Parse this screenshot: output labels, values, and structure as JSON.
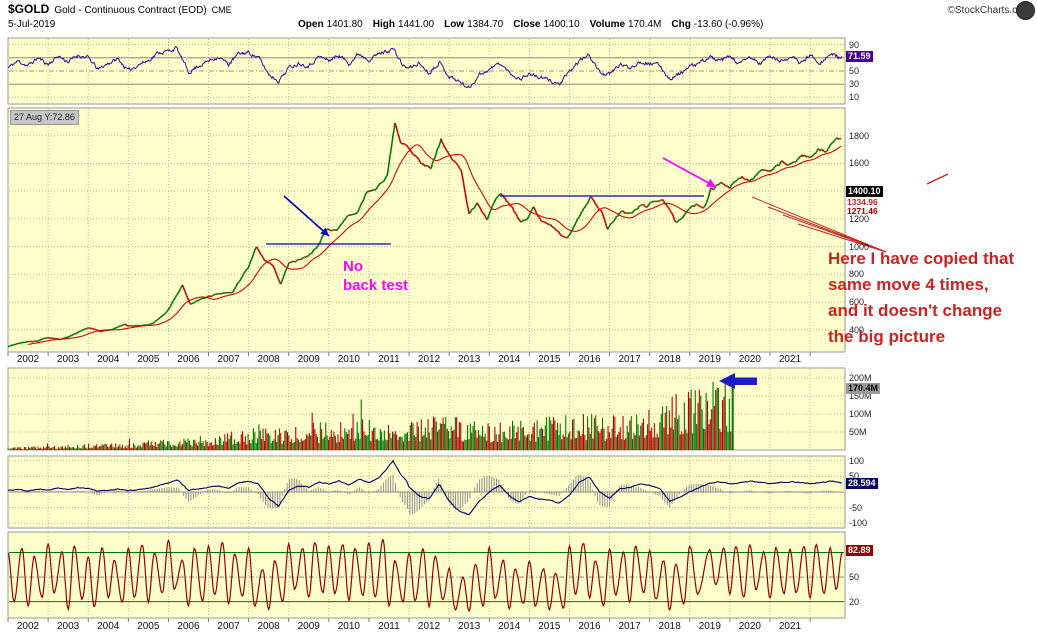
{
  "header": {
    "symbol": "$GOLD",
    "title": "Gold - Continuous Contract (EOD)",
    "exchange": "CME",
    "copyright": "©StockCharts.com",
    "date": "5-Jul-2019",
    "quote": [
      {
        "label": "Open",
        "value": "1401.80"
      },
      {
        "label": "High",
        "value": "1441.00"
      },
      {
        "label": "Low",
        "value": "1384.70"
      },
      {
        "label": "Close",
        "value": "1400.10"
      },
      {
        "label": "Volume",
        "value": "170.4M"
      },
      {
        "label": "Chg",
        "value": "-13.60 (-0.96%)"
      }
    ]
  },
  "tooltip": "27 Aug Y:72.86",
  "badges": {
    "rsi": "71.59",
    "close": "1400.10",
    "ma1": "1334.96",
    "ma2": "1271.46",
    "volume": "170.4M",
    "macd": "28.594",
    "stoch": "82.89"
  },
  "axes": {
    "years": [
      "2002",
      "2003",
      "2004",
      "2005",
      "2006",
      "2007",
      "2008",
      "2009",
      "2010",
      "2011",
      "2012",
      "2013",
      "2014",
      "2015",
      "2016",
      "2017",
      "2018",
      "2019",
      "2020",
      "2021"
    ],
    "rsi": [
      {
        "t": "90",
        "v": 90
      },
      {
        "t": "70",
        "v": 70
      },
      {
        "t": "50",
        "v": 50
      },
      {
        "t": "30",
        "v": 30
      },
      {
        "t": "10",
        "v": 10
      }
    ],
    "price": [
      {
        "t": "1800",
        "v": 1800
      },
      {
        "t": "1600",
        "v": 1600
      },
      {
        "t": "1200",
        "v": 1200
      },
      {
        "t": "1000",
        "v": 1000
      },
      {
        "t": "800",
        "v": 800
      },
      {
        "t": "600",
        "v": 600
      },
      {
        "t": "400",
        "v": 400
      }
    ],
    "volume": [
      {
        "t": "200M",
        "v": 200
      },
      {
        "t": "150M",
        "v": 150
      },
      {
        "t": "100M",
        "v": 100
      },
      {
        "t": "50M",
        "v": 50
      }
    ],
    "macd": [
      {
        "t": "100",
        "v": 100
      },
      {
        "t": "50",
        "v": 50
      },
      {
        "t": "-50",
        "v": -50
      },
      {
        "t": "-100",
        "v": -100
      }
    ],
    "stoch": [
      {
        "t": "50",
        "v": 50
      },
      {
        "t": "20",
        "v": 20
      }
    ]
  },
  "annotations": {
    "no_back_test": [
      "No",
      "back test"
    ],
    "copied_note": [
      "Here I have copied that",
      "same move 4 times,",
      "and it doesn't change",
      "the big picture"
    ]
  },
  "colors": {
    "panel_bg": "#ffffcc",
    "grid": "#b9b98f",
    "up": "#007700",
    "down": "#cc0000",
    "ma_line": "#dd0000",
    "rsi_line": "#440099",
    "macd_line": "#000066",
    "macd_hist": "#909090",
    "stoch_line": "#990000",
    "stoch_level": "#007700",
    "annotation_red": "#cc2222",
    "annotation_magenta": "#ff00ff",
    "annotation_blue": "#0000cc",
    "volume_arrow_blue": "#1c1ccc"
  },
  "chart_data": [
    {
      "id": "rsi",
      "type": "line",
      "title": "RSI oscillator (top panel)",
      "current_value": 71.59,
      "ylim": [
        0,
        100
      ],
      "levels": [
        90,
        70,
        50,
        30,
        10
      ],
      "points": [
        2002.0,
        55,
        2002.25,
        65,
        2002.5,
        58,
        2002.75,
        70,
        2003.0,
        60,
        2003.25,
        73,
        2003.5,
        64,
        2003.75,
        74,
        2004.0,
        70,
        2004.25,
        52,
        2004.5,
        62,
        2004.75,
        68,
        2005.0,
        50,
        2005.25,
        60,
        2005.5,
        66,
        2005.75,
        78,
        2006.0,
        80,
        2006.2,
        85,
        2006.5,
        48,
        2006.75,
        58,
        2007.0,
        65,
        2007.25,
        72,
        2007.5,
        60,
        2007.75,
        76,
        2008.0,
        78,
        2008.25,
        70,
        2008.5,
        45,
        2008.75,
        35,
        2009.0,
        55,
        2009.25,
        62,
        2009.5,
        58,
        2009.75,
        72,
        2010.0,
        66,
        2010.25,
        74,
        2010.5,
        62,
        2010.75,
        76,
        2011.0,
        68,
        2011.25,
        76,
        2011.6,
        84,
        2011.85,
        58,
        2012.0,
        54,
        2012.25,
        62,
        2012.5,
        47,
        2012.75,
        64,
        2013.0,
        42,
        2013.25,
        34,
        2013.5,
        24,
        2013.75,
        45,
        2014.0,
        52,
        2014.25,
        62,
        2014.5,
        48,
        2014.75,
        38,
        2015.0,
        46,
        2015.25,
        40,
        2015.5,
        36,
        2015.75,
        30,
        2016.0,
        48,
        2016.25,
        66,
        2016.5,
        74,
        2016.75,
        48,
        2017.0,
        44,
        2017.25,
        60,
        2017.5,
        55,
        2017.75,
        64,
        2018.0,
        62,
        2018.25,
        58,
        2018.5,
        38,
        2018.75,
        46,
        2019.0,
        56,
        2019.25,
        62,
        2019.5,
        71.59,
        2019.75,
        64,
        2020.0,
        72,
        2020.25,
        60,
        2020.5,
        71,
        2020.75,
        61,
        2021.0,
        73,
        2021.25,
        64,
        2021.5,
        72,
        2021.75,
        62,
        2022.0,
        74,
        2022.25,
        63,
        2022.5,
        75,
        2022.8,
        70
      ]
    },
    {
      "id": "price",
      "type": "candlestick",
      "title": "$GOLD price 2002-2019 with move copied 4 times into 2020-2021",
      "xlabel_years": [
        2002,
        2021
      ],
      "ylim": [
        240,
        2000
      ],
      "gridline_values": [
        400,
        600,
        800,
        1000,
        1200,
        1400,
        1600,
        1800
      ],
      "last_close": 1400.1,
      "points": [
        2002.0,
        280,
        2002.3,
        305,
        2002.5,
        315,
        2002.75,
        320,
        2003.0,
        345,
        2003.3,
        330,
        2003.6,
        360,
        2003.9,
        400,
        2004.0,
        415,
        2004.3,
        390,
        2004.6,
        400,
        2004.9,
        440,
        2005.0,
        425,
        2005.3,
        430,
        2005.6,
        445,
        2005.9,
        510,
        2006.0,
        545,
        2006.35,
        720,
        2006.55,
        580,
        2006.8,
        620,
        2007.0,
        640,
        2007.3,
        660,
        2007.6,
        670,
        2007.85,
        790,
        2008.0,
        850,
        2008.2,
        1000,
        2008.4,
        900,
        2008.6,
        870,
        2008.8,
        730,
        2009.0,
        880,
        2009.2,
        900,
        2009.45,
        930,
        2009.7,
        990,
        2009.95,
        1130,
        2010.2,
        1110,
        2010.45,
        1220,
        2010.7,
        1240,
        2010.95,
        1390,
        2011.2,
        1420,
        2011.45,
        1510,
        2011.65,
        1890,
        2011.8,
        1750,
        2011.95,
        1720,
        2012.1,
        1660,
        2012.35,
        1590,
        2012.55,
        1570,
        2012.8,
        1780,
        2012.95,
        1680,
        2013.1,
        1620,
        2013.3,
        1560,
        2013.5,
        1230,
        2013.7,
        1320,
        2013.95,
        1200,
        2014.15,
        1330,
        2014.3,
        1380,
        2014.55,
        1290,
        2014.8,
        1180,
        2014.95,
        1190,
        2015.1,
        1280,
        2015.3,
        1180,
        2015.55,
        1150,
        2015.8,
        1080,
        2015.95,
        1060,
        2016.1,
        1140,
        2016.3,
        1250,
        2016.55,
        1360,
        2016.8,
        1250,
        2016.95,
        1130,
        2017.1,
        1190,
        2017.3,
        1250,
        2017.55,
        1240,
        2017.8,
        1300,
        2017.95,
        1290,
        2018.1,
        1330,
        2018.3,
        1340,
        2018.5,
        1260,
        2018.65,
        1180,
        2018.85,
        1220,
        2019.0,
        1280,
        2019.2,
        1300,
        2019.35,
        1285,
        2019.45,
        1340,
        2019.52,
        1410,
        2019.8,
        1460,
        2020.0,
        1430,
        2020.3,
        1505,
        2020.5,
        1480,
        2020.8,
        1560,
        2021.0,
        1535,
        2021.3,
        1610,
        2021.5,
        1585,
        2021.8,
        1660,
        2022.0,
        1640,
        2022.2,
        1705,
        2022.4,
        1685,
        2022.6,
        1765,
        2022.8,
        1795
      ]
    },
    {
      "id": "vol",
      "type": "bars",
      "title": "Volume (millions)",
      "current_value": "170.4M",
      "ylim": [
        0,
        228
      ],
      "levels": [
        200,
        150,
        100,
        50
      ],
      "envelope": [
        2002,
        8,
        2003,
        12,
        2004,
        18,
        2005,
        20,
        2006,
        35,
        2007,
        40,
        2008,
        60,
        2009,
        70,
        2010,
        80,
        2011,
        95,
        2012,
        85,
        2013,
        100,
        2014,
        80,
        2015,
        85,
        2016,
        115,
        2017,
        100,
        2018,
        130,
        2018.6,
        160,
        2019.0,
        170,
        2019.3,
        185,
        2019.6,
        190,
        2019.9,
        200,
        2020.05,
        205
      ]
    },
    {
      "id": "macd",
      "type": "line+histogram",
      "title": "MACD style oscillator",
      "current_value": 28.594,
      "ylim": [
        -115,
        115
      ],
      "levels": [
        100,
        50,
        -50,
        -100
      ],
      "points": [
        2002.0,
        5,
        2002.25,
        8,
        2002.5,
        3,
        2002.75,
        10,
        2003.0,
        6,
        2003.25,
        12,
        2003.5,
        8,
        2003.75,
        14,
        2004.0,
        12,
        2004.25,
        2,
        2004.5,
        6,
        2004.75,
        10,
        2005.0,
        4,
        2005.25,
        8,
        2005.5,
        12,
        2005.75,
        20,
        2006.0,
        30,
        2006.25,
        38,
        2006.5,
        5,
        2006.75,
        10,
        2007.0,
        15,
        2007.25,
        20,
        2007.5,
        12,
        2007.75,
        30,
        2008.0,
        35,
        2008.25,
        25,
        2008.5,
        -20,
        2008.75,
        -45,
        2009.0,
        5,
        2009.25,
        20,
        2009.5,
        15,
        2009.75,
        32,
        2010.0,
        25,
        2010.25,
        35,
        2010.5,
        22,
        2010.75,
        42,
        2011.0,
        30,
        2011.25,
        45,
        2011.6,
        100,
        2011.8,
        55,
        2011.95,
        35,
        2012.0,
        15,
        2012.25,
        -12,
        2012.5,
        -22,
        2012.75,
        25,
        2013.0,
        -30,
        2013.25,
        -62,
        2013.5,
        -72,
        2013.75,
        -30,
        2014.0,
        0,
        2014.25,
        22,
        2014.5,
        -10,
        2014.75,
        -32,
        2015.0,
        -15,
        2015.25,
        -22,
        2015.5,
        -26,
        2015.75,
        -36,
        2016.0,
        -10,
        2016.25,
        32,
        2016.5,
        48,
        2016.75,
        0,
        2017.0,
        -22,
        2017.25,
        10,
        2017.5,
        15,
        2017.75,
        26,
        2018.0,
        22,
        2018.25,
        12,
        2018.5,
        -30,
        2018.75,
        -16,
        2019.0,
        0,
        2019.25,
        16,
        2019.5,
        28.594,
        2019.75,
        32,
        2020.0,
        26,
        2020.5,
        34,
        2021.0,
        28,
        2021.5,
        33,
        2022.0,
        27,
        2022.5,
        34,
        2022.8,
        30
      ]
    },
    {
      "id": "stoch",
      "type": "line",
      "title": "Stochastic style oscillator (bottom panel)",
      "current_value": 82.89,
      "ylim": [
        0,
        105
      ],
      "levels": [
        80,
        50,
        20
      ],
      "points": [
        2002.0,
        80,
        2002.15,
        20,
        2002.35,
        85,
        2002.5,
        15,
        2002.65,
        75,
        2002.85,
        25,
        2003.0,
        90,
        2003.15,
        30,
        2003.35,
        80,
        2003.5,
        10,
        2003.65,
        88,
        2003.85,
        22,
        2004.0,
        75,
        2004.15,
        15,
        2004.35,
        85,
        2004.5,
        25,
        2004.65,
        70,
        2004.85,
        18,
        2005.0,
        85,
        2005.15,
        25,
        2005.35,
        90,
        2005.5,
        20,
        2005.65,
        80,
        2005.85,
        30,
        2006.0,
        95,
        2006.15,
        35,
        2006.35,
        70,
        2006.5,
        15,
        2006.65,
        85,
        2006.85,
        20,
        2007.0,
        88,
        2007.15,
        28,
        2007.35,
        92,
        2007.5,
        18,
        2007.65,
        78,
        2007.85,
        26,
        2008.0,
        85,
        2008.15,
        15,
        2008.35,
        60,
        2008.5,
        10,
        2008.65,
        70,
        2008.85,
        20,
        2009.0,
        90,
        2009.15,
        35,
        2009.35,
        85,
        2009.5,
        25,
        2009.65,
        92,
        2009.85,
        30,
        2010.0,
        88,
        2010.15,
        30,
        2010.35,
        90,
        2010.5,
        22,
        2010.65,
        85,
        2010.85,
        28,
        2011.0,
        92,
        2011.15,
        25,
        2011.35,
        95,
        2011.5,
        15,
        2011.65,
        70,
        2011.85,
        20,
        2012.0,
        80,
        2012.15,
        20,
        2012.35,
        85,
        2012.5,
        15,
        2012.65,
        75,
        2012.85,
        22,
        2013.0,
        60,
        2013.15,
        10,
        2013.35,
        50,
        2013.5,
        8,
        2013.65,
        65,
        2013.85,
        15,
        2014.0,
        85,
        2014.15,
        25,
        2014.35,
        70,
        2014.5,
        12,
        2014.65,
        60,
        2014.85,
        18,
        2015.0,
        70,
        2015.15,
        15,
        2015.35,
        60,
        2015.5,
        10,
        2015.65,
        55,
        2015.85,
        12,
        2016.0,
        88,
        2016.15,
        30,
        2016.35,
        92,
        2016.5,
        25,
        2016.65,
        70,
        2016.85,
        15,
        2017.0,
        85,
        2017.15,
        28,
        2017.35,
        80,
        2017.5,
        20,
        2017.65,
        88,
        2017.85,
        30,
        2018.0,
        82,
        2018.15,
        22,
        2018.35,
        70,
        2018.5,
        10,
        2018.65,
        65,
        2018.85,
        18,
        2019.0,
        88,
        2019.2,
        30,
        2019.5,
        82.89,
        2019.65,
        40,
        2019.85,
        85,
        2020.0,
        30,
        2020.15,
        88,
        2020.35,
        25,
        2020.5,
        90,
        2020.65,
        35,
        2020.85,
        80,
        2021.0,
        25,
        2021.15,
        85,
        2021.35,
        30,
        2021.5,
        85,
        2021.65,
        30,
        2021.85,
        88,
        2022.0,
        25,
        2022.15,
        90,
        2022.35,
        30,
        2022.5,
        85,
        2022.65,
        35,
        2022.8,
        80
      ]
    }
  ]
}
